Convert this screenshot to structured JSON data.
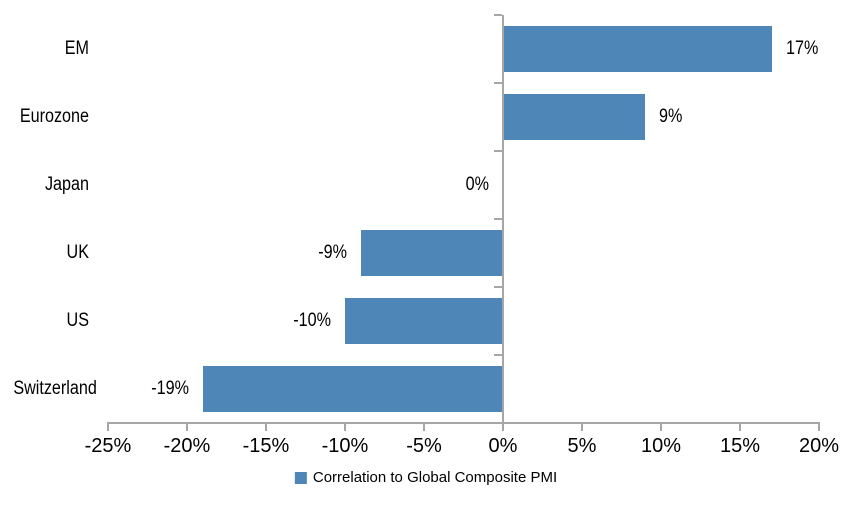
{
  "chart_data": {
    "type": "bar",
    "orientation": "horizontal",
    "categories": [
      "EM",
      "Eurozone",
      "Japan",
      "UK",
      "US",
      "Switzerland"
    ],
    "values": [
      17,
      9,
      0,
      -9,
      -10,
      -19
    ],
    "value_labels": [
      "17%",
      "9%",
      "0%",
      "-9%",
      "-10%",
      "-19%"
    ],
    "series": [
      {
        "name": "Correlation to Global Composite PMI",
        "values": [
          17,
          9,
          0,
          -9,
          -10,
          -19
        ]
      }
    ],
    "xlim": [
      -25,
      20
    ],
    "x_ticks": [
      {
        "value": -25,
        "label": "-25%"
      },
      {
        "value": -20,
        "label": "-20%"
      },
      {
        "value": -15,
        "label": "-15%"
      },
      {
        "value": -10,
        "label": "-10%"
      },
      {
        "value": -5,
        "label": "-5%"
      },
      {
        "value": 0,
        "label": "0%"
      },
      {
        "value": 5,
        "label": "5%"
      },
      {
        "value": 10,
        "label": "10%"
      },
      {
        "value": 15,
        "label": "15%"
      },
      {
        "value": 20,
        "label": "20%"
      }
    ],
    "title": "",
    "xlabel": "",
    "ylabel": "",
    "grid": false,
    "legend": {
      "label": "Correlation to Global Composite PMI",
      "position": "bottom"
    },
    "colors": {
      "bar": "#4E86B8",
      "axis": "#A6A6A6",
      "text": "#000000",
      "background": "#FFFFFF"
    }
  }
}
